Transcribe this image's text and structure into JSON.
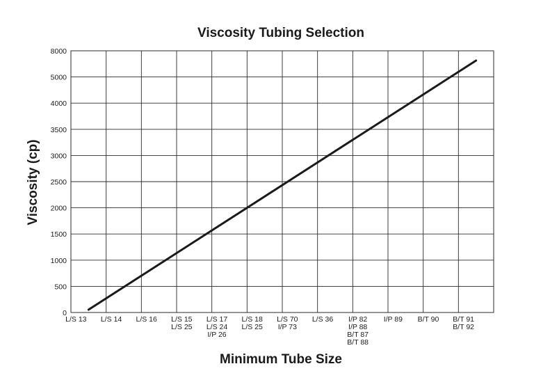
{
  "chart_data": {
    "type": "line",
    "title": "Viscosity Tubing Selection",
    "xlabel": "Minimum Tube Size",
    "ylabel": "Viscosity (cp)",
    "ylim": [
      0,
      8000
    ],
    "y_ticks": [
      "0",
      "500",
      "1000",
      "1500",
      "2000",
      "2500",
      "3000",
      "3500",
      "4000",
      "5000",
      "8000"
    ],
    "categories": [
      [
        "L/S 13"
      ],
      [
        "L/S 14"
      ],
      [
        "L/S 16"
      ],
      [
        "L/S 15",
        "L/S 25"
      ],
      [
        "L/S 17",
        "L/S 24",
        "I/P 26"
      ],
      [
        "L/S 18",
        "L/S 25"
      ],
      [
        "L/S 70",
        "I/P 73"
      ],
      [
        "L/S 36"
      ],
      [
        "I/P 82",
        "I/P 88",
        "B/T 87",
        "B/T 88"
      ],
      [
        "I/P 89"
      ],
      [
        "B/T 90"
      ],
      [
        "B/T 91",
        "B/T 92"
      ]
    ],
    "grid": true,
    "series": [
      {
        "start": {
          "category": 0,
          "y": 0
        },
        "end": {
          "category": 11,
          "y": 8000
        }
      }
    ]
  }
}
